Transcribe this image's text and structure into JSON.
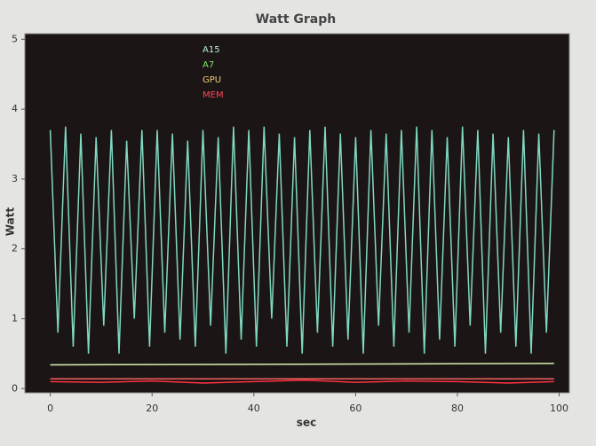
{
  "chart_data": {
    "type": "line",
    "title": "Watt Graph",
    "xlabel": "sec",
    "ylabel": "Watt",
    "xlim": [
      -5,
      102
    ],
    "ylim": [
      -0.06,
      5.08
    ],
    "xticks": [
      0,
      20,
      40,
      60,
      80,
      100
    ],
    "yticks": [
      0,
      1,
      2,
      3,
      4,
      5
    ],
    "legend": "upper left",
    "series": [
      {
        "name": "A15",
        "color": "#7fd8c0",
        "x": [
          0,
          1.5,
          3,
          4.5,
          6,
          7.5,
          9,
          10.5,
          12,
          13.5,
          15,
          16.5,
          18,
          19.5,
          21,
          22.5,
          24,
          25.5,
          27,
          28.5,
          30,
          31.5,
          33,
          34.5,
          36,
          37.5,
          39,
          40.5,
          42,
          43.5,
          45,
          46.5,
          48,
          49.5,
          51,
          52.5,
          54,
          55.5,
          57,
          58.5,
          60,
          61.5,
          63,
          64.5,
          66,
          67.5,
          69,
          70.5,
          72,
          73.5,
          75,
          76.5,
          78,
          79.5,
          81,
          82.5,
          84,
          85.5,
          87,
          88.5,
          90,
          91.5,
          93,
          94.5,
          96,
          97.5,
          99
        ],
        "values": [
          3.7,
          0.8,
          3.75,
          0.6,
          3.65,
          0.5,
          3.6,
          0.9,
          3.7,
          0.5,
          3.55,
          1.0,
          3.7,
          0.6,
          3.7,
          0.8,
          3.65,
          0.7,
          3.55,
          0.6,
          3.7,
          0.9,
          3.6,
          0.5,
          3.75,
          0.7,
          3.7,
          0.6,
          3.75,
          1.0,
          3.65,
          0.6,
          3.6,
          0.5,
          3.7,
          0.8,
          3.75,
          0.6,
          3.65,
          0.7,
          3.6,
          0.5,
          3.7,
          0.9,
          3.65,
          0.6,
          3.7,
          0.8,
          3.75,
          0.5,
          3.7,
          0.7,
          3.6,
          0.6,
          3.75,
          0.9,
          3.7,
          0.5,
          3.65,
          0.8,
          3.6,
          0.6,
          3.7,
          0.5,
          3.65,
          0.8,
          3.7
        ]
      },
      {
        "name": "A7",
        "color": "#d8f0b0",
        "x": [
          0,
          99
        ],
        "values": [
          0.34,
          0.36
        ]
      },
      {
        "name": "GPU",
        "color": "#f06060",
        "x": [
          0,
          99
        ],
        "values": [
          0.14,
          0.14
        ]
      },
      {
        "name": "MEM",
        "color": "#ff3040",
        "x": [
          0,
          10,
          20,
          30,
          40,
          50,
          60,
          70,
          80,
          90,
          99
        ],
        "values": [
          0.1,
          0.09,
          0.11,
          0.08,
          0.1,
          0.12,
          0.09,
          0.11,
          0.1,
          0.08,
          0.1
        ]
      }
    ]
  }
}
